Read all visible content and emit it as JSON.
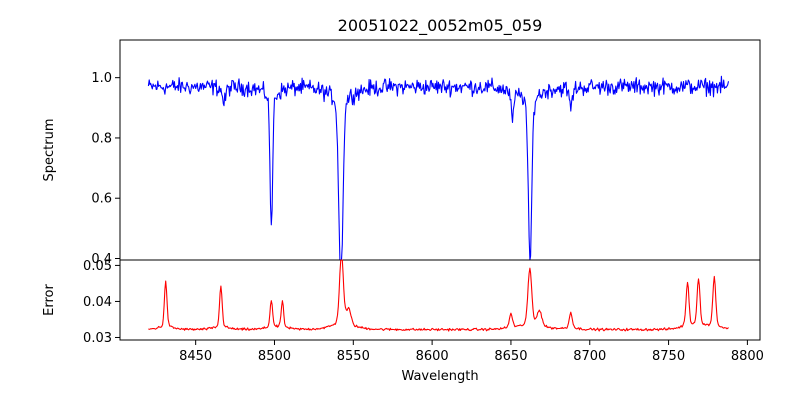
{
  "chart_data": [
    {
      "type": "line",
      "title": "20051022_0052m05_059",
      "xlabel": "",
      "ylabel": "Spectrum",
      "xlim": [
        8402,
        8808
      ],
      "ylim": [
        0.395,
        1.125
      ],
      "yticks": [
        0.4,
        0.6,
        0.8,
        1.0
      ],
      "ytick_labels": [
        "0.4",
        "0.6",
        "0.8",
        "1.0"
      ],
      "grid": false,
      "series": [
        {
          "color": "#0000ff",
          "x_range": [
            8420,
            8788
          ],
          "baseline": 0.97,
          "noise": 0.04,
          "absorption_lines": [
            {
              "center": 8498.0,
              "depth": 0.43,
              "width": 0.8
            },
            {
              "center": 8542.1,
              "depth": 0.56,
              "width": 1.3
            },
            {
              "center": 8662.1,
              "depth": 0.53,
              "width": 1.1
            },
            {
              "center": 8651.0,
              "depth": 0.08,
              "width": 1.0
            },
            {
              "center": 8468.0,
              "depth": 0.05,
              "width": 1.0
            },
            {
              "center": 8688.0,
              "depth": 0.06,
              "width": 1.0
            }
          ]
        }
      ]
    },
    {
      "type": "line",
      "title": "",
      "xlabel": "Wavelength",
      "ylabel": "Error",
      "xlim": [
        8402,
        8808
      ],
      "ylim": [
        0.0293,
        0.0515
      ],
      "yticks": [
        0.03,
        0.04,
        0.05
      ],
      "ytick_labels": [
        "0.03",
        "0.04",
        "0.05"
      ],
      "xticks": [
        8450,
        8500,
        8550,
        8600,
        8650,
        8700,
        8750,
        8800
      ],
      "xtick_labels": [
        "8450",
        "8500",
        "8550",
        "8600",
        "8650",
        "8700",
        "8750",
        "8800"
      ],
      "grid": false,
      "series": [
        {
          "color": "#ff0000",
          "x_range": [
            8420,
            8788
          ],
          "baseline": 0.0322,
          "noise": 0.0005,
          "peaks": [
            {
              "center": 8431.0,
              "height": 0.0115,
              "width": 0.8
            },
            {
              "center": 8466.0,
              "height": 0.0105,
              "width": 0.8
            },
            {
              "center": 8498.0,
              "height": 0.007,
              "width": 0.8
            },
            {
              "center": 8505.0,
              "height": 0.0065,
              "width": 0.8
            },
            {
              "center": 8542.5,
              "height": 0.018,
              "width": 1.2
            },
            {
              "center": 8547.0,
              "height": 0.004,
              "width": 1.5
            },
            {
              "center": 8662.0,
              "height": 0.0145,
              "width": 1.2
            },
            {
              "center": 8668.0,
              "height": 0.004,
              "width": 1.5
            },
            {
              "center": 8688.0,
              "height": 0.004,
              "width": 1.0
            },
            {
              "center": 8762.0,
              "height": 0.011,
              "width": 0.9
            },
            {
              "center": 8769.0,
              "height": 0.012,
              "width": 0.9
            },
            {
              "center": 8779.0,
              "height": 0.0125,
              "width": 0.9
            },
            {
              "center": 8650.0,
              "height": 0.0035,
              "width": 1.0
            }
          ]
        }
      ]
    }
  ]
}
